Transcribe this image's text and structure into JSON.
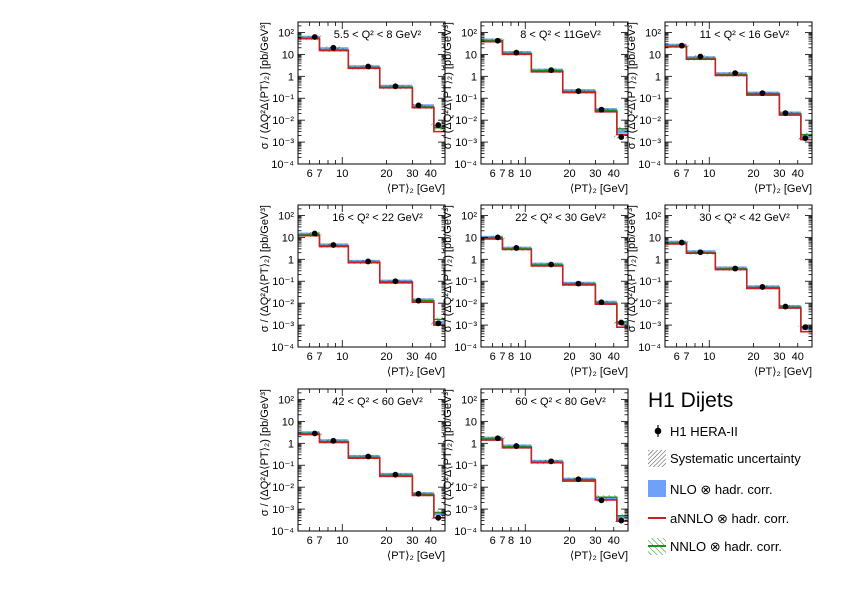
{
  "legend": {
    "title": "H1 Dijets",
    "entries": [
      {
        "key": "data",
        "label": "H1 HERA-II"
      },
      {
        "key": "syst",
        "label": "Systematic uncertainty"
      },
      {
        "key": "nlo",
        "label": "NLO ⊗ hadr. corr."
      },
      {
        "key": "annlo",
        "label": "aNNLO ⊗ hadr. corr."
      },
      {
        "key": "nnlo",
        "label": "NNLO ⊗ hadr. corr."
      }
    ]
  },
  "colors": {
    "nlo": "#6fa2f6",
    "annlo": "#c62020",
    "nnlo": "#1f8a1f",
    "data": "#000000",
    "syst": "#555555"
  },
  "chart_data": [
    {
      "type": "histogram",
      "title": "5.5 < Q² < 8 GeV²",
      "xlabel": "⟨PT⟩₂ [GeV]",
      "ylabel": "σ / (ΔQ²Δ⟨PT⟩₂) [pb/GeV³]",
      "xscale": "log",
      "yscale": "log",
      "xlim": [
        5,
        50
      ],
      "ylim": [
        0.0001,
        300
      ],
      "xticklabels": [
        "6",
        "7",
        "10",
        "20",
        "30",
        "40"
      ],
      "yticklabels": [
        "10⁻⁴",
        "10⁻³",
        "10⁻²",
        "10⁻¹",
        "1",
        "10",
        "10²"
      ],
      "bin_edges": [
        5,
        7,
        11,
        18,
        30,
        42,
        50
      ],
      "nlo": [
        60,
        18,
        2.7,
        0.35,
        0.045,
        0.005
      ],
      "annlo": [
        52,
        15,
        2.3,
        0.3,
        0.037,
        0.003
      ],
      "nnlo": [
        55,
        16,
        2.5,
        0.32,
        0.04,
        0.0045
      ],
      "data_x": [
        6.5,
        8.7,
        15,
        23,
        33,
        45
      ],
      "data_y": [
        62,
        20,
        2.8,
        0.35,
        0.047,
        0.006
      ]
    },
    {
      "type": "histogram",
      "title": "8 < Q² < 11GeV²",
      "xlabel": "⟨PT⟩₂ [GeV]",
      "ylabel": "σ / (ΔQ²Δ⟨PT⟩₂) [pb/GeV³]",
      "xscale": "log",
      "yscale": "log",
      "xlim": [
        5,
        50
      ],
      "ylim": [
        0.0001,
        300
      ],
      "xticklabels": [
        "6",
        "7",
        "8",
        "10",
        "20",
        "30",
        "40"
      ],
      "yticklabels": [
        "10⁻⁴",
        "10⁻³",
        "10⁻²",
        "10⁻¹",
        "1",
        "10",
        "10²"
      ],
      "bin_edges": [
        5,
        7,
        11,
        18,
        30,
        42,
        50
      ],
      "nlo": [
        45,
        12,
        1.9,
        0.22,
        0.03,
        0.003
      ],
      "annlo": [
        38,
        10,
        1.6,
        0.18,
        0.024,
        0.0022
      ],
      "nnlo": [
        42,
        11,
        1.8,
        0.2,
        0.028,
        0.004
      ],
      "data_x": [
        6.5,
        8.7,
        15,
        23,
        33,
        45
      ],
      "data_y": [
        42,
        12,
        1.9,
        0.21,
        0.03,
        0.0017
      ]
    },
    {
      "type": "histogram",
      "title": "11 < Q² < 16 GeV²",
      "xlabel": "⟨PT⟩₂ [GeV]",
      "ylabel": "σ / (ΔQ²Δ⟨PT⟩₂) [pb/GeV³]",
      "xscale": "log",
      "yscale": "log",
      "xlim": [
        5,
        50
      ],
      "ylim": [
        0.0001,
        300
      ],
      "xticklabels": [
        "6",
        "7",
        "10",
        "20",
        "30",
        "40"
      ],
      "yticklabels": [
        "10⁻⁴",
        "10⁻³",
        "10⁻²",
        "10⁻¹",
        "1",
        "10",
        "10²"
      ],
      "bin_edges": [
        5,
        7,
        11,
        18,
        30,
        42,
        50
      ],
      "nlo": [
        26,
        7,
        1.3,
        0.17,
        0.021,
        0.0018
      ],
      "annlo": [
        22,
        6,
        1.1,
        0.14,
        0.017,
        0.0013
      ],
      "nnlo": [
        24,
        6.5,
        1.2,
        0.16,
        0.02,
        0.0022
      ],
      "data_x": [
        6.5,
        8.7,
        15,
        23,
        33,
        45
      ],
      "data_y": [
        25,
        8,
        1.4,
        0.17,
        0.021,
        0.0015
      ]
    },
    {
      "type": "histogram",
      "title": "16 < Q² < 22 GeV²",
      "xlabel": "⟨PT⟩₂ [GeV]",
      "ylabel": "σ / (ΔQ²Δ⟨PT⟩₂) [pb/GeV³]",
      "xscale": "log",
      "yscale": "log",
      "xlim": [
        5,
        50
      ],
      "ylim": [
        0.0001,
        300
      ],
      "xticklabels": [
        "6",
        "7",
        "10",
        "20",
        "30",
        "40"
      ],
      "yticklabels": [
        "10⁻⁴",
        "10⁻³",
        "10⁻²",
        "10⁻¹",
        "1",
        "10",
        "10²"
      ],
      "bin_edges": [
        5,
        7,
        11,
        18,
        30,
        42,
        50
      ],
      "nlo": [
        14,
        4.5,
        0.8,
        0.1,
        0.014,
        0.0013
      ],
      "annlo": [
        12,
        3.8,
        0.7,
        0.085,
        0.011,
        0.001
      ],
      "nnlo": [
        13,
        4.2,
        0.75,
        0.095,
        0.013,
        0.0018
      ],
      "data_x": [
        6.5,
        8.7,
        15,
        23,
        33,
        45
      ],
      "data_y": [
        15,
        4.5,
        0.8,
        0.1,
        0.013,
        0.0012
      ]
    },
    {
      "type": "histogram",
      "title": "22 < Q² < 30 GeV²",
      "xlabel": "⟨PT⟩₂ [GeV]",
      "ylabel": "σ / (ΔQ²Δ⟨PT⟩₂) [pb/GeV³]",
      "xscale": "log",
      "yscale": "log",
      "xlim": [
        5,
        50
      ],
      "ylim": [
        0.0001,
        300
      ],
      "xticklabels": [
        "6",
        "7",
        "8",
        "10",
        "20",
        "30",
        "40"
      ],
      "yticklabels": [
        "10⁻⁴",
        "10⁻³",
        "10⁻²",
        "10⁻¹",
        "1",
        "10",
        "10²"
      ],
      "bin_edges": [
        5,
        7,
        11,
        18,
        30,
        42,
        50
      ],
      "nlo": [
        10,
        3.2,
        0.6,
        0.08,
        0.011,
        0.0012
      ],
      "annlo": [
        8.5,
        2.8,
        0.5,
        0.068,
        0.009,
        0.0008
      ],
      "nnlo": [
        9.5,
        3.0,
        0.55,
        0.075,
        0.01,
        0.0014
      ],
      "data_x": [
        6.5,
        8.7,
        15,
        23,
        33,
        45
      ],
      "data_y": [
        10,
        3.3,
        0.58,
        0.078,
        0.011,
        0.0013
      ]
    },
    {
      "type": "histogram",
      "title": "30 < Q² < 42 GeV²",
      "xlabel": "⟨PT⟩₂ [GeV]",
      "ylabel": "σ / (ΔQ²Δ⟨PT⟩₂) [pb/GeV³]",
      "xscale": "log",
      "yscale": "log",
      "xlim": [
        5,
        50
      ],
      "ylim": [
        0.0001,
        300
      ],
      "xticklabels": [
        "6",
        "7",
        "10",
        "20",
        "30",
        "40"
      ],
      "yticklabels": [
        "10⁻⁴",
        "10⁻³",
        "10⁻²",
        "10⁻¹",
        "1",
        "10",
        "10²"
      ],
      "bin_edges": [
        5,
        7,
        11,
        18,
        30,
        42,
        50
      ],
      "nlo": [
        6,
        2.2,
        0.4,
        0.055,
        0.007,
        0.0007
      ],
      "annlo": [
        5,
        1.9,
        0.34,
        0.047,
        0.006,
        0.0005
      ],
      "nnlo": [
        5.6,
        2.0,
        0.37,
        0.052,
        0.0065,
        0.0008
      ],
      "data_x": [
        6.5,
        8.7,
        15,
        23,
        33,
        45
      ],
      "data_y": [
        5.8,
        2.1,
        0.38,
        0.055,
        0.007,
        0.0008
      ]
    },
    {
      "type": "histogram",
      "title": "42 < Q² < 60 GeV²",
      "xlabel": "⟨PT⟩₂ [GeV]",
      "ylabel": "σ / (ΔQ²Δ⟨PT⟩₂) [pb/GeV³]",
      "xscale": "log",
      "yscale": "log",
      "xlim": [
        5,
        50
      ],
      "ylim": [
        0.0001,
        300
      ],
      "xticklabels": [
        "6",
        "7",
        "10",
        "20",
        "30",
        "40"
      ],
      "yticklabels": [
        "10⁻⁴",
        "10⁻³",
        "10⁻²",
        "10⁻¹",
        "1",
        "10",
        "10²"
      ],
      "bin_edges": [
        5,
        7,
        11,
        18,
        30,
        42,
        50
      ],
      "nlo": [
        3.0,
        1.3,
        0.25,
        0.038,
        0.005,
        0.0006
      ],
      "annlo": [
        2.5,
        1.1,
        0.21,
        0.031,
        0.0042,
        0.0004
      ],
      "nnlo": [
        2.8,
        1.2,
        0.23,
        0.035,
        0.0047,
        0.0007
      ],
      "data_x": [
        6.5,
        8.7,
        15,
        23,
        33,
        45
      ],
      "data_y": [
        2.8,
        1.3,
        0.25,
        0.037,
        0.005,
        0.0004
      ]
    },
    {
      "type": "histogram",
      "title": "60 < Q² < 80 GeV²",
      "xlabel": "⟨PT⟩₂ [GeV]",
      "ylabel": "σ / (ΔQ²Δ⟨PT⟩₂) [pb/GeV³]",
      "xscale": "log",
      "yscale": "log",
      "xlim": [
        5,
        50
      ],
      "ylim": [
        0.0001,
        300
      ],
      "xticklabels": [
        "6",
        "7",
        "8",
        "10",
        "20",
        "30",
        "40"
      ],
      "yticklabels": [
        "10⁻⁴",
        "10⁻³",
        "10⁻²",
        "10⁻¹",
        "1",
        "10",
        "10²"
      ],
      "bin_edges": [
        5,
        7,
        11,
        18,
        30,
        42,
        50
      ],
      "nlo": [
        1.7,
        0.75,
        0.15,
        0.023,
        0.0032,
        0.0004
      ],
      "annlo": [
        1.4,
        0.62,
        0.13,
        0.019,
        0.0026,
        0.00028
      ],
      "nnlo": [
        1.6,
        0.7,
        0.14,
        0.022,
        0.0035,
        0.0005
      ],
      "data_x": [
        6.5,
        8.7,
        15,
        23,
        33,
        45
      ],
      "data_y": [
        1.7,
        0.75,
        0.15,
        0.023,
        0.0025,
        0.0003
      ]
    }
  ]
}
